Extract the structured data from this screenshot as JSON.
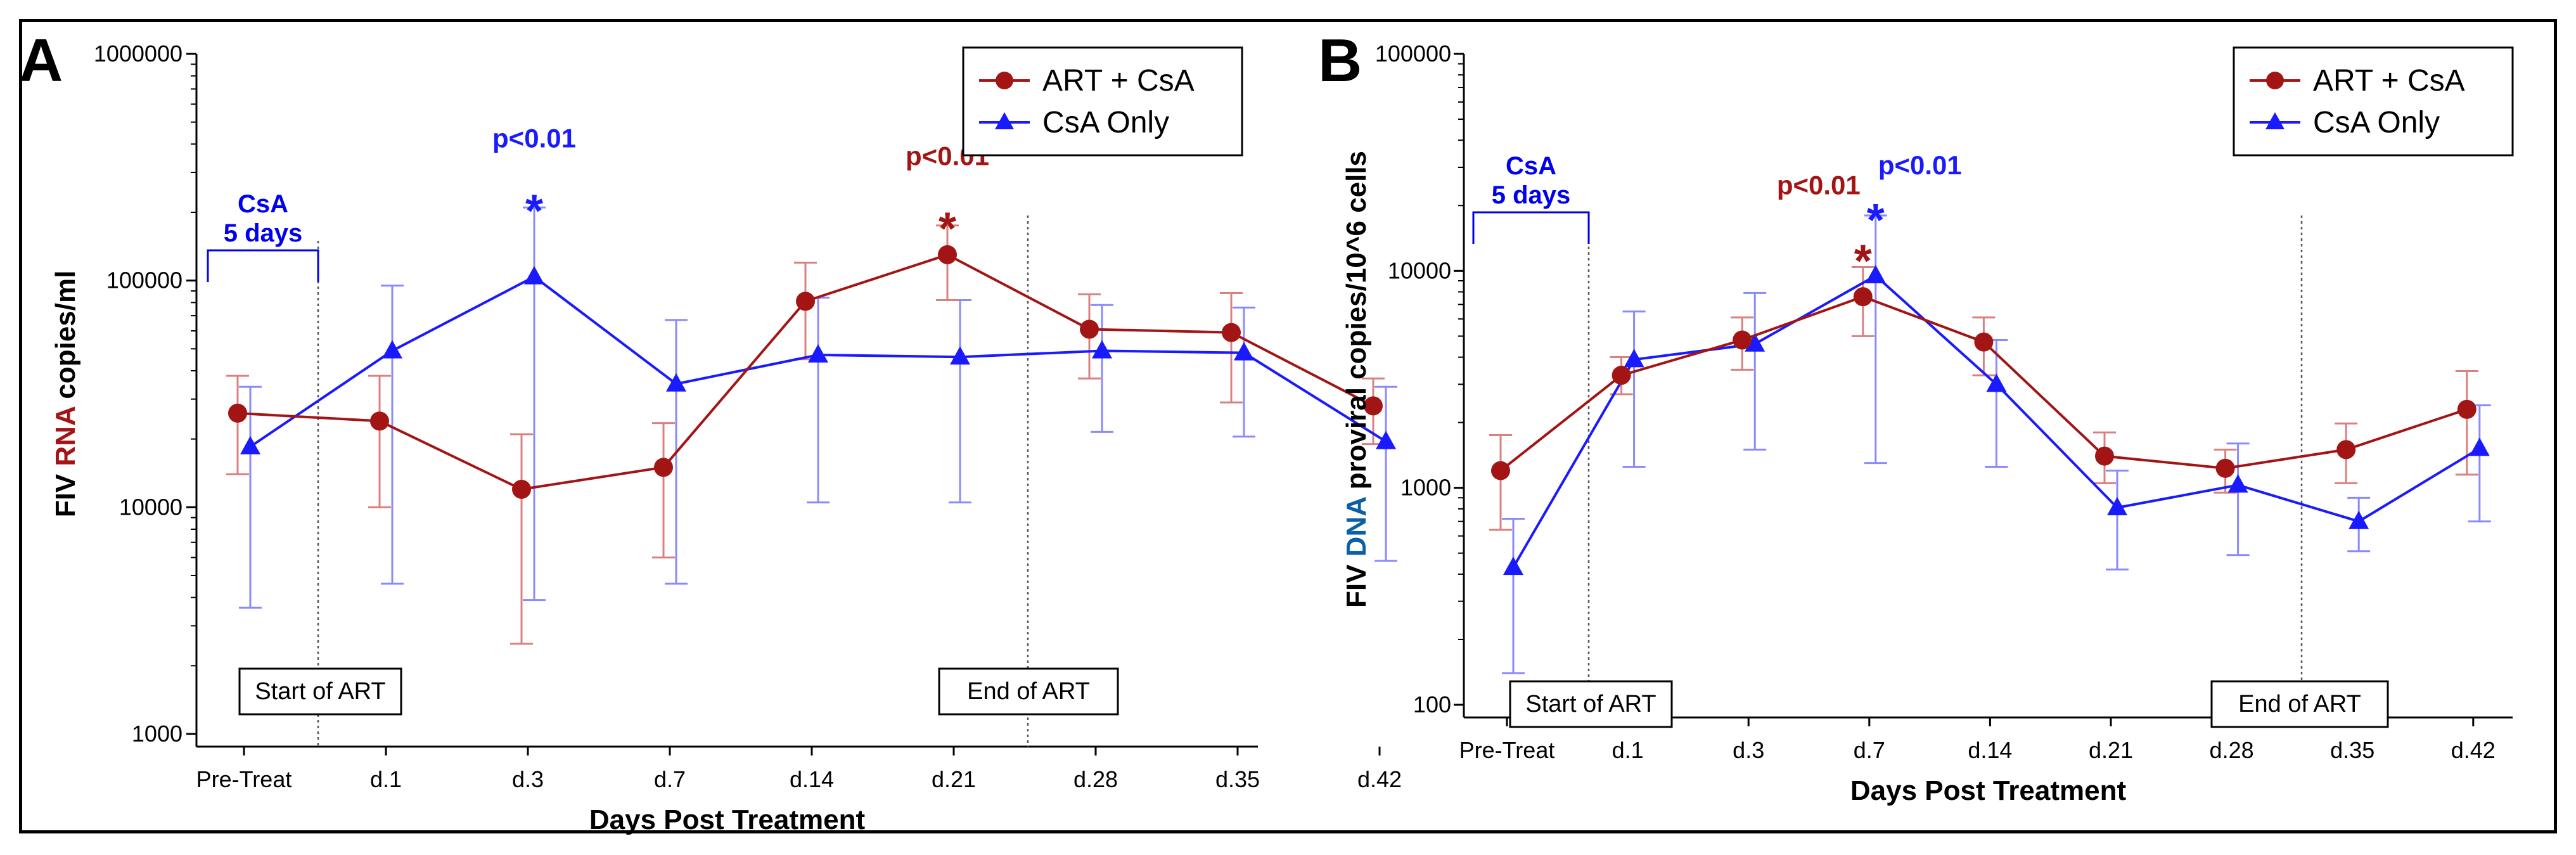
{
  "colors": {
    "art_csa": "#a31515",
    "csa_only": "#1a1aff",
    "art_csa_err": "#d98080",
    "csa_only_err": "#8a8aff",
    "csa_label": "#0000ee"
  },
  "legend": {
    "series_1": "ART + CsA",
    "series_2": "CsA Only"
  },
  "chart_data": [
    {
      "type": "line",
      "panel": "A",
      "ylabel_prefix": "FIV ",
      "ylabel_highlight": "RNA",
      "ylabel_suffix": " copies/ml",
      "xlabel": "Days Post Treatment",
      "yscale": "log",
      "ylim": [
        1000,
        1000000
      ],
      "yticks": [
        1000,
        10000,
        100000,
        1000000
      ],
      "ytick_labels": [
        "1000",
        "10000",
        "100000",
        "1000000"
      ],
      "categories": [
        "Pre-Treat",
        "d.1",
        "d.3",
        "d.7",
        "d.14",
        "d.21",
        "d.28",
        "d.35",
        "d.42"
      ],
      "series": [
        {
          "name": "ART + CsA",
          "values": [
            26000,
            24000,
            12000,
            15000,
            81000,
            130000,
            61000,
            59000,
            28000
          ],
          "err_low": [
            14000,
            10000,
            2500,
            6000,
            45000,
            82000,
            37000,
            29000,
            19000
          ],
          "err_high": [
            38000,
            38000,
            21000,
            23500,
            120000,
            175000,
            87000,
            88000,
            37000
          ]
        },
        {
          "name": "CsA Only",
          "values": [
            18500,
            49000,
            104000,
            35000,
            47000,
            46000,
            49000,
            48000,
            19500
          ],
          "err_low": [
            3600,
            4600,
            3900,
            4600,
            10500,
            10500,
            21500,
            20500,
            5800
          ],
          "err_high": [
            34000,
            95000,
            210000,
            67000,
            84000,
            82000,
            78000,
            76000,
            34000
          ]
        }
      ],
      "start_art_label": "Start of ART",
      "end_art_label": "End of ART",
      "csa_label_line1": "CsA",
      "csa_label_line2": "5 days",
      "annotations": [
        {
          "text": "p<0.01",
          "star": "*",
          "series": "CsA Only",
          "category": "d.3"
        },
        {
          "text": "p<0.01",
          "star": "*",
          "series": "ART + CsA",
          "category": "d.21"
        }
      ]
    },
    {
      "type": "line",
      "panel": "B",
      "ylabel_prefix": "FIV ",
      "ylabel_highlight": "DNA",
      "ylabel_suffix": " proviral copies/10^6 cells",
      "xlabel": "Days Post Treatment",
      "yscale": "log",
      "ylim": [
        100,
        100000
      ],
      "yticks": [
        100,
        1000,
        10000,
        100000
      ],
      "ytick_labels": [
        "100",
        "1000",
        "10000",
        "100000"
      ],
      "categories": [
        "Pre-Treat",
        "d.1",
        "d.3",
        "d.7",
        "d.14",
        "d.21",
        "d.28",
        "d.35",
        "d.42"
      ],
      "series": [
        {
          "name": "ART + CsA",
          "values": [
            1200,
            3300,
            4800,
            7600,
            4700,
            1400,
            1230,
            1500,
            2300
          ],
          "err_low": [
            640,
            2700,
            3500,
            5000,
            3300,
            1050,
            950,
            1050,
            1150
          ],
          "err_high": [
            1750,
            4000,
            6100,
            10400,
            6100,
            1800,
            1500,
            1980,
            3450
          ]
        },
        {
          "name": "CsA Only",
          "values": [
            430,
            3900,
            4600,
            9500,
            3000,
            810,
            1030,
            700,
            1520
          ],
          "err_low": [
            140,
            1250,
            1500,
            1300,
            1250,
            420,
            490,
            510,
            700
          ],
          "err_high": [
            720,
            6500,
            7900,
            18000,
            4800,
            1200,
            1600,
            900,
            2400
          ]
        }
      ],
      "start_art_label": "Start of ART",
      "end_art_label": "End of ART",
      "csa_label_line1": "CsA",
      "csa_label_line2": "5 days",
      "annotations": [
        {
          "text": "p<0.01",
          "star": "*",
          "series": "ART + CsA",
          "category": "d.7"
        },
        {
          "text": "p<0.01",
          "star": "*",
          "series": "CsA Only",
          "category": "d.7"
        }
      ]
    }
  ]
}
